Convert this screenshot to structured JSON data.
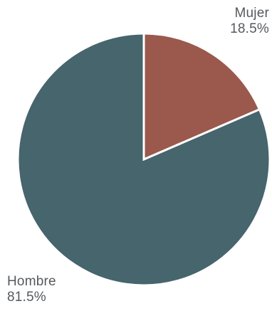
{
  "chart_data": {
    "type": "pie",
    "title": "",
    "categories": [
      "Hombre",
      "Mujer"
    ],
    "values": [
      81.5,
      18.5
    ],
    "value_labels": [
      "81.5%",
      "18.5%"
    ],
    "start": "12 o'clock",
    "direction": "clockwise, Mujer first",
    "colors": {
      "Hombre": "#46656d",
      "Mujer": "#9a594c"
    },
    "legend": "none (direct labels)"
  }
}
